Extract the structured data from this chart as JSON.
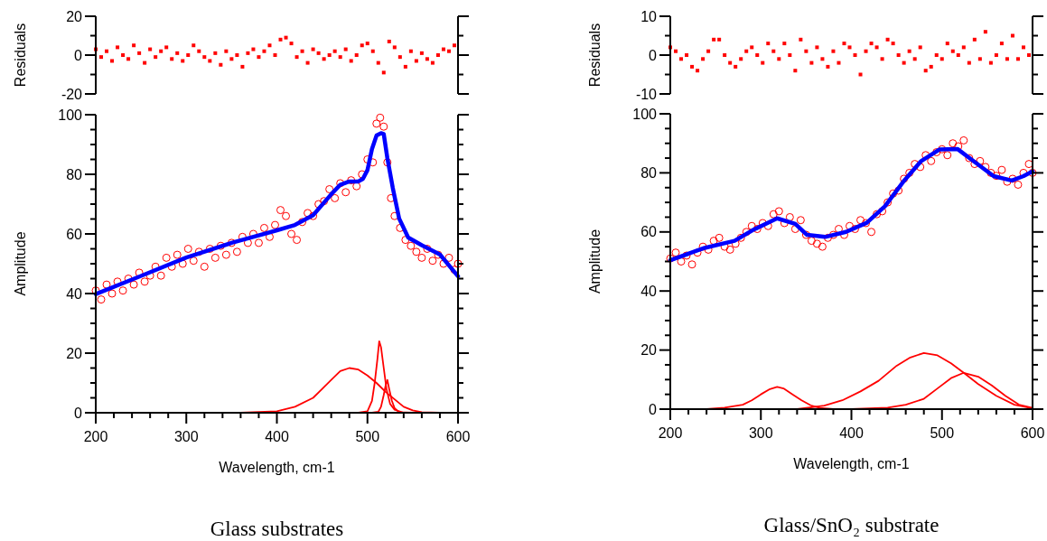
{
  "chart_data": [
    {
      "type": "scatter",
      "ylabel": "Residuals",
      "xlim": [
        200,
        600
      ],
      "ylim": [
        -20,
        20
      ],
      "yticks": [
        -20,
        {
          "value": -10,
          "label": null
        },
        0,
        {
          "value": 10,
          "label": null
        },
        20
      ],
      "tick_labels": "y",
      "series": [
        {
          "color": "#ff0000",
          "marker": "square",
          "x": [
            200,
            206,
            212,
            218,
            224,
            230,
            236,
            242,
            248,
            254,
            260,
            266,
            272,
            278,
            284,
            290,
            296,
            302,
            308,
            314,
            320,
            326,
            332,
            338,
            344,
            350,
            356,
            362,
            368,
            374,
            380,
            386,
            392,
            398,
            404,
            410,
            416,
            422,
            428,
            434,
            440,
            446,
            452,
            458,
            464,
            470,
            476,
            482,
            488,
            494,
            500,
            506,
            512,
            518,
            524,
            530,
            536,
            542,
            548,
            554,
            560,
            566,
            572,
            578,
            584,
            590,
            596
          ],
          "values": [
            3,
            -1,
            2,
            -3,
            4,
            0,
            -2,
            5,
            1,
            -4,
            3,
            -1,
            2,
            4,
            -2,
            1,
            -3,
            0,
            5,
            2,
            -1,
            -3,
            1,
            -5,
            2,
            -2,
            0,
            -6,
            1,
            3,
            -1,
            2,
            5,
            0,
            8,
            9,
            6,
            -1,
            2,
            -4,
            3,
            1,
            -2,
            0,
            2,
            -1,
            3,
            -3,
            0,
            5,
            6,
            2,
            -4,
            -9,
            7,
            4,
            -1,
            -6,
            2,
            -3,
            1,
            -2,
            -4,
            0,
            3,
            2,
            5
          ]
        }
      ]
    },
    {
      "type": "scatter",
      "ylabel": "Amplitude",
      "xlabel": "Wavelength, cm-1",
      "annotations": [
        "Glass substrates"
      ],
      "xlim": [
        200,
        600
      ],
      "ylim": [
        0,
        100
      ],
      "xticks": [
        200,
        {
          "value": 220,
          "label": null
        },
        {
          "value": 240,
          "label": null
        },
        {
          "value": 260,
          "label": null
        },
        {
          "value": 280,
          "label": null
        },
        300,
        {
          "value": 320,
          "label": null
        },
        {
          "value": 340,
          "label": null
        },
        {
          "value": 360,
          "label": null
        },
        {
          "value": 380,
          "label": null
        },
        400,
        {
          "value": 420,
          "label": null
        },
        {
          "value": 440,
          "label": null
        },
        {
          "value": 460,
          "label": null
        },
        {
          "value": 480,
          "label": null
        },
        500,
        {
          "value": 520,
          "label": null
        },
        {
          "value": 540,
          "label": null
        },
        {
          "value": 560,
          "label": null
        },
        {
          "value": 580,
          "label": null
        },
        600
      ],
      "yticks": [
        0,
        {
          "value": 5,
          "label": null
        },
        {
          "value": 10,
          "label": null
        },
        {
          "value": 15,
          "label": null
        },
        20,
        {
          "value": 25,
          "label": null
        },
        {
          "value": 30,
          "label": null
        },
        {
          "value": 35,
          "label": null
        },
        40,
        {
          "value": 45,
          "label": null
        },
        {
          "value": 50,
          "label": null
        },
        {
          "value": 55,
          "label": null
        },
        60,
        {
          "value": 65,
          "label": null
        },
        {
          "value": 70,
          "label": null
        },
        {
          "value": 75,
          "label": null
        },
        80,
        {
          "value": 85,
          "label": null
        },
        {
          "value": 90,
          "label": null
        },
        {
          "value": 95,
          "label": null
        },
        100
      ],
      "series": [
        {
          "color": "#ff0000",
          "marker": "circle",
          "x": [
            200,
            206,
            212,
            218,
            224,
            230,
            236,
            242,
            248,
            254,
            260,
            266,
            272,
            278,
            284,
            290,
            296,
            302,
            308,
            314,
            320,
            326,
            332,
            338,
            344,
            350,
            356,
            362,
            368,
            374,
            380,
            386,
            392,
            398,
            404,
            410,
            416,
            422,
            428,
            434,
            440,
            446,
            452,
            458,
            464,
            470,
            476,
            482,
            488,
            494,
            500,
            506,
            510,
            514,
            518,
            522,
            526,
            530,
            536,
            542,
            548,
            554,
            560,
            566,
            572,
            578,
            584,
            590,
            596,
            600
          ],
          "values": [
            41,
            38,
            43,
            40,
            44,
            41,
            45,
            43,
            47,
            44,
            46,
            49,
            46,
            52,
            49,
            53,
            50,
            55,
            51,
            54,
            49,
            55,
            52,
            56,
            53,
            57,
            54,
            59,
            57,
            60,
            57,
            62,
            59,
            63,
            68,
            66,
            60,
            58,
            64,
            67,
            66,
            70,
            71,
            75,
            72,
            77,
            74,
            78,
            76,
            80,
            85,
            84,
            97,
            99,
            96,
            84,
            72,
            66,
            62,
            58,
            56,
            54,
            52,
            55,
            51,
            53,
            50,
            52,
            48,
            50
          ]
        },
        {
          "type": "line",
          "color": "#0000ff",
          "x": [
            200,
            250,
            300,
            350,
            400,
            420,
            440,
            460,
            470,
            480,
            490,
            495,
            500,
            505,
            510,
            515,
            518,
            522,
            528,
            535,
            545,
            560,
            580,
            600
          ],
          "values": [
            39.8,
            45.9,
            52.1,
            57,
            61.2,
            63,
            66.3,
            73.3,
            76.5,
            77.6,
            77.6,
            78.5,
            81.4,
            88.5,
            93,
            93.8,
            93.5,
            85.4,
            75.4,
            65.2,
            58.8,
            56.2,
            53.1,
            45.8
          ]
        },
        {
          "type": "line",
          "color": "#ff0000",
          "x": [
            360,
            400,
            420,
            440,
            450,
            460,
            470,
            480,
            490,
            500,
            510,
            520,
            530,
            540,
            550,
            560,
            580
          ],
          "values": [
            0,
            0.5,
            2,
            5,
            8,
            11,
            14,
            15,
            14.5,
            12.5,
            10,
            7,
            4.5,
            2,
            0.8,
            0.2,
            0
          ]
        },
        {
          "type": "line",
          "color": "#ff0000",
          "x": [
            490,
            500,
            505,
            508,
            511,
            513,
            515,
            518,
            521,
            525,
            530,
            540,
            560
          ],
          "values": [
            0,
            0.5,
            4,
            10,
            18,
            24,
            22,
            15,
            8,
            3,
            1,
            0,
            0
          ]
        },
        {
          "type": "line",
          "color": "#ff0000",
          "x": [
            505,
            512,
            515,
            518,
            520,
            522,
            524,
            527,
            530,
            535,
            550
          ],
          "values": [
            0,
            0.3,
            2,
            6,
            9,
            11,
            8,
            4,
            1.5,
            0.2,
            0
          ]
        }
      ]
    },
    {
      "type": "scatter",
      "ylabel": "Residuals",
      "xlim": [
        200,
        600
      ],
      "ylim": [
        -10,
        10
      ],
      "yticks": [
        -10,
        {
          "value": -5,
          "label": null
        },
        0,
        {
          "value": 5,
          "label": null
        },
        10
      ],
      "tick_labels": "y",
      "series": [
        {
          "color": "#ff0000",
          "marker": "square",
          "x": [
            200,
            206,
            212,
            218,
            224,
            230,
            236,
            242,
            248,
            254,
            260,
            266,
            272,
            278,
            284,
            290,
            296,
            302,
            308,
            314,
            320,
            326,
            332,
            338,
            344,
            350,
            356,
            362,
            368,
            374,
            380,
            386,
            392,
            398,
            404,
            410,
            416,
            422,
            428,
            434,
            440,
            446,
            452,
            458,
            464,
            470,
            476,
            482,
            488,
            494,
            500,
            506,
            512,
            518,
            524,
            530,
            536,
            542,
            548,
            554,
            560,
            566,
            572,
            578,
            584,
            590,
            596
          ],
          "values": [
            2,
            1,
            -1,
            0,
            -3,
            -4,
            -1,
            1,
            4,
            4,
            0,
            -2,
            -3,
            -1,
            1,
            2,
            0,
            -2,
            3,
            1,
            -1,
            3,
            0,
            -4,
            4,
            1,
            -2,
            2,
            -1,
            -3,
            1,
            -2,
            3,
            2,
            0,
            -5,
            1,
            3,
            2,
            -1,
            4,
            3,
            0,
            -2,
            1,
            -1,
            2,
            -4,
            -3,
            0,
            -1,
            3,
            1,
            0,
            2,
            -2,
            4,
            -1,
            6,
            -2,
            0,
            3,
            -1,
            5,
            -1,
            2,
            0
          ]
        }
      ]
    },
    {
      "type": "scatter",
      "ylabel": "Amplitude",
      "xlabel": "Wavelength, cm-1",
      "annotations": [
        "Glass/SnO₂ substrate"
      ],
      "xlim": [
        200,
        600
      ],
      "ylim": [
        0,
        100
      ],
      "xticks": [
        200,
        {
          "value": 220,
          "label": null
        },
        {
          "value": 240,
          "label": null
        },
        {
          "value": 260,
          "label": null
        },
        {
          "value": 280,
          "label": null
        },
        300,
        {
          "value": 320,
          "label": null
        },
        {
          "value": 340,
          "label": null
        },
        {
          "value": 360,
          "label": null
        },
        {
          "value": 380,
          "label": null
        },
        400,
        {
          "value": 420,
          "label": null
        },
        {
          "value": 440,
          "label": null
        },
        {
          "value": 460,
          "label": null
        },
        {
          "value": 480,
          "label": null
        },
        500,
        {
          "value": 520,
          "label": null
        },
        {
          "value": 540,
          "label": null
        },
        {
          "value": 560,
          "label": null
        },
        {
          "value": 580,
          "label": null
        },
        600
      ],
      "yticks": [
        0,
        {
          "value": 5,
          "label": null
        },
        {
          "value": 10,
          "label": null
        },
        {
          "value": 15,
          "label": null
        },
        20,
        {
          "value": 25,
          "label": null
        },
        {
          "value": 30,
          "label": null
        },
        {
          "value": 35,
          "label": null
        },
        40,
        {
          "value": 45,
          "label": null
        },
        {
          "value": 50,
          "label": null
        },
        {
          "value": 55,
          "label": null
        },
        60,
        {
          "value": 65,
          "label": null
        },
        {
          "value": 70,
          "label": null
        },
        {
          "value": 75,
          "label": null
        },
        80,
        {
          "value": 85,
          "label": null
        },
        {
          "value": 90,
          "label": null
        },
        {
          "value": 95,
          "label": null
        },
        100
      ],
      "series": [
        {
          "color": "#ff0000",
          "marker": "circle",
          "x": [
            200,
            206,
            212,
            218,
            224,
            230,
            236,
            242,
            248,
            254,
            260,
            266,
            272,
            278,
            284,
            290,
            296,
            302,
            308,
            314,
            320,
            326,
            332,
            338,
            344,
            350,
            356,
            362,
            368,
            374,
            380,
            386,
            392,
            398,
            404,
            410,
            416,
            422,
            428,
            434,
            440,
            446,
            452,
            458,
            464,
            470,
            476,
            482,
            488,
            494,
            500,
            506,
            512,
            518,
            524,
            530,
            536,
            542,
            548,
            554,
            560,
            566,
            572,
            578,
            584,
            590,
            596,
            600
          ],
          "values": [
            51,
            53,
            50,
            52,
            49,
            53,
            55,
            54,
            57,
            58,
            55,
            54,
            56,
            58,
            60,
            62,
            61,
            63,
            62,
            66,
            67,
            63,
            65,
            61,
            64,
            59,
            57,
            56,
            55,
            58,
            59,
            61,
            59,
            62,
            61,
            64,
            63,
            60,
            66,
            67,
            70,
            73,
            74,
            78,
            80,
            83,
            82,
            86,
            84,
            87,
            88,
            86,
            90,
            89,
            91,
            85,
            83,
            84,
            82,
            80,
            79,
            81,
            77,
            78,
            76,
            80,
            83,
            80
          ]
        },
        {
          "type": "line",
          "color": "#0000ff",
          "x": [
            200,
            238,
            271,
            291,
            318,
            338,
            351,
            371,
            394,
            417,
            437,
            457,
            477,
            497,
            517,
            537,
            557,
            577,
            590,
            600
          ],
          "values": [
            50.4,
            54.6,
            57,
            60.6,
            64.6,
            62.7,
            59,
            58.3,
            60,
            63.1,
            68.7,
            76.9,
            84,
            87.9,
            88.1,
            83.5,
            78.9,
            77.4,
            78.9,
            80.5
          ]
        },
        {
          "type": "line",
          "color": "#ff0000",
          "x": [
            240,
            260,
            280,
            290,
            300,
            310,
            318,
            325,
            335,
            345,
            355,
            365,
            380
          ],
          "values": [
            0,
            0.5,
            1.5,
            3,
            5,
            6.8,
            7.5,
            7,
            5,
            3,
            1.3,
            0.4,
            0
          ]
        },
        {
          "type": "line",
          "color": "#ff0000",
          "x": [
            340,
            370,
            390,
            410,
            430,
            450,
            465,
            480,
            495,
            510,
            524,
            540,
            560,
            580,
            600
          ],
          "values": [
            0,
            1.2,
            3,
            6,
            9.6,
            14.7,
            17.5,
            19,
            18.2,
            15.5,
            12.3,
            8.5,
            4.5,
            1.5,
            0.3
          ]
        },
        {
          "type": "line",
          "color": "#ff0000",
          "x": [
            400,
            440,
            460,
            480,
            495,
            510,
            524,
            540,
            555,
            570,
            585,
            600
          ],
          "values": [
            0,
            0.5,
            1.5,
            3.5,
            7,
            10.5,
            12.3,
            11,
            8,
            4.5,
            1.5,
            0.4
          ]
        }
      ]
    }
  ]
}
